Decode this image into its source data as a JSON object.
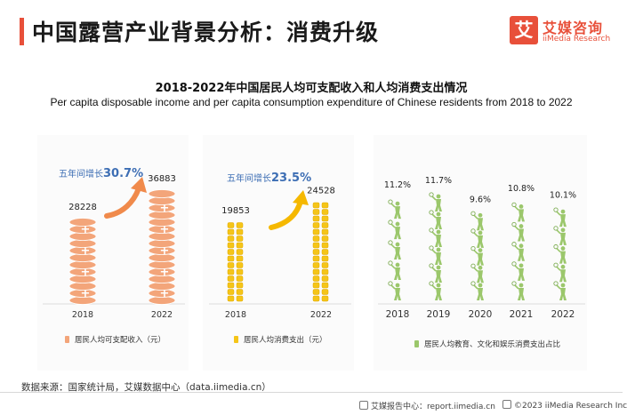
{
  "page_title": "中国露营产业背景分析：消费升级",
  "logo": {
    "mark": "艾",
    "name_cn": "艾媒咨询",
    "name_en": "iiMedia Research"
  },
  "chart_title": "2018-2022年中国居民人均可支配收入和人均消费支出情况",
  "chart_subtitle": "Per capita disposable income and per capita consumption expenditure of Chinese residents from 2018 to 2022",
  "colors": {
    "income": "#f3a57a",
    "expense": "#f5c518",
    "share": "#9bc76b",
    "growth_text": "#3d6eb4",
    "arrow_income": "#f08a4b",
    "arrow_expense": "#f5b800"
  },
  "chart_data": [
    {
      "type": "bar",
      "categories": [
        "2018",
        "2022"
      ],
      "values": [
        28228,
        36883
      ],
      "annotation": {
        "prefix": "五年间增长",
        "value": "30.7%"
      },
      "legend": "居民人均可支配收入（元）"
    },
    {
      "type": "bar",
      "categories": [
        "2018",
        "2022"
      ],
      "values": [
        19853,
        24528
      ],
      "annotation": {
        "prefix": "五年间增长",
        "value": "23.5%"
      },
      "legend": "居民人均消费支出（元）"
    },
    {
      "type": "bar",
      "categories": [
        "2018",
        "2019",
        "2020",
        "2021",
        "2022"
      ],
      "values": [
        11.2,
        11.7,
        9.6,
        10.8,
        10.1
      ],
      "value_labels": [
        "11.2%",
        "11.7%",
        "9.6%",
        "10.8%",
        "10.1%"
      ],
      "unit": "%",
      "legend": "居民人均教育、文化和娱乐消费支出占比"
    }
  ],
  "source": "数据来源：国家统计局，艾媒数据中心（data.iimedia.cn）",
  "footer": {
    "left": "艾媒报告中心：report.iimedia.cn",
    "right": "©2023  iiMedia Research  Inc"
  }
}
